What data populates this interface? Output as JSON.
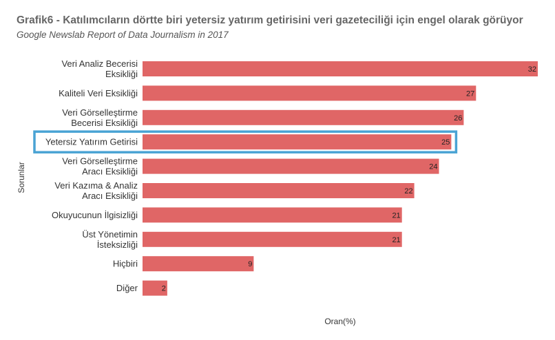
{
  "chart_data": {
    "type": "bar",
    "orientation": "horizontal",
    "title": "Grafik6 - Katılımcıların dörtte biri yetersiz yatırım getirisini veri gazeteciliği için engel olarak görüyor",
    "subtitle": "Google Newslab Report of Data Journalism in 2017",
    "xlabel": "Oran(%)",
    "ylabel": "Sorunlar",
    "categories": [
      [
        "Veri Analiz Becerisi",
        "Eksikliği"
      ],
      [
        "Kaliteli Veri Eksikliği"
      ],
      [
        "Veri Görselleştirme",
        "Becerisi Eksikliği"
      ],
      [
        "Yetersiz Yatırım Getirisi"
      ],
      [
        "Veri Görselleştirme",
        "Aracı Eksikliği"
      ],
      [
        "Veri Kazıma & Analiz",
        "Aracı Eksikliği"
      ],
      [
        "Okuyucunun İlgisizliği"
      ],
      [
        "Üst Yönetimin",
        "İsteksizliği"
      ],
      [
        "Hiçbiri"
      ],
      [
        "Diğer"
      ]
    ],
    "values": [
      32,
      27,
      26,
      25,
      24,
      22,
      21,
      21,
      9,
      2
    ],
    "highlight_index": 3,
    "xlim": [
      0,
      32
    ],
    "grid": false,
    "legend": "none",
    "colors": {
      "bar": "#e06666",
      "highlight_border": "#4aa3d4"
    }
  }
}
